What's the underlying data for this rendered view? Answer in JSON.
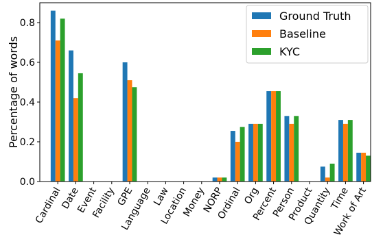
{
  "chart_data": {
    "type": "bar",
    "title": "",
    "xlabel": "",
    "ylabel": "Percentage of words",
    "ylim": [
      0,
      0.9
    ],
    "yticks": [
      "0.0",
      "0.2",
      "0.4",
      "0.6",
      "0.8"
    ],
    "grid": false,
    "legend_position": "top-right",
    "categories": [
      "Cardinal",
      "Date",
      "Event",
      "Facility",
      "GPE",
      "Language",
      "Law",
      "Location",
      "Money",
      "NORP",
      "Ordinal",
      "Org",
      "Percent",
      "Person",
      "Product",
      "Quantity",
      "Time",
      "Work of Art"
    ],
    "series": [
      {
        "name": "Ground Truth",
        "color": "#1f77b4",
        "values": [
          0.86,
          0.66,
          0,
          0,
          0.6,
          0,
          0,
          0,
          0,
          0.02,
          0.255,
          0.29,
          0.455,
          0.33,
          0,
          0.075,
          0.31,
          0.145
        ]
      },
      {
        "name": "Baseline",
        "color": "#ff7f0e",
        "values": [
          0.71,
          0.42,
          0,
          0,
          0.51,
          0,
          0,
          0,
          0,
          0.02,
          0.2,
          0.29,
          0.455,
          0.29,
          0,
          0.02,
          0.29,
          0.145
        ]
      },
      {
        "name": "KYC",
        "color": "#2ca02c",
        "values": [
          0.82,
          0.545,
          0,
          0,
          0.475,
          0,
          0,
          0,
          0,
          0.02,
          0.275,
          0.29,
          0.455,
          0.33,
          0,
          0.09,
          0.31,
          0.13
        ]
      }
    ]
  }
}
